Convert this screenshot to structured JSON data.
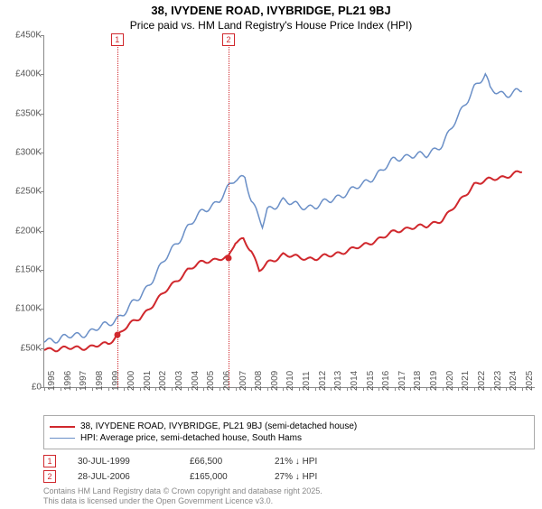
{
  "title": "38, IVYDENE ROAD, IVYBRIDGE, PL21 9BJ",
  "subtitle": "Price paid vs. HM Land Registry's House Price Index (HPI)",
  "chart": {
    "type": "line",
    "background_color": "#ffffff",
    "axis_color": "#888888",
    "text_color": "#555555",
    "ylim": [
      0,
      450000
    ],
    "ytick_step": 50000,
    "yticks": [
      "£0",
      "£50K",
      "£100K",
      "£150K",
      "£200K",
      "£250K",
      "£300K",
      "£350K",
      "£400K",
      "£450K"
    ],
    "xlim": [
      1995,
      2025.8
    ],
    "xticks": [
      "1995",
      "1996",
      "1997",
      "1998",
      "1999",
      "2000",
      "2001",
      "2002",
      "2003",
      "2004",
      "2005",
      "2006",
      "2007",
      "2008",
      "2009",
      "2010",
      "2011",
      "2012",
      "2013",
      "2014",
      "2015",
      "2016",
      "2017",
      "2018",
      "2019",
      "2020",
      "2021",
      "2022",
      "2023",
      "2024",
      "2025"
    ],
    "series": [
      {
        "name": "subject",
        "label": "38, IVYDENE ROAD, IVYBRIDGE, PL21 9BJ (semi-detached house)",
        "color": "#d0282d",
        "line_width": 2,
        "data": [
          [
            1995,
            49000
          ],
          [
            1996,
            49000
          ],
          [
            1997,
            50000
          ],
          [
            1998,
            52000
          ],
          [
            1999,
            55000
          ],
          [
            1999.58,
            66500
          ],
          [
            2000,
            75000
          ],
          [
            2001,
            88000
          ],
          [
            2002,
            110000
          ],
          [
            2003,
            130000
          ],
          [
            2004,
            150000
          ],
          [
            2005,
            160000
          ],
          [
            2006,
            165000
          ],
          [
            2006.57,
            165000
          ],
          [
            2007,
            185000
          ],
          [
            2007.5,
            190000
          ],
          [
            2008,
            175000
          ],
          [
            2008.5,
            148000
          ],
          [
            2009,
            158000
          ],
          [
            2010,
            170000
          ],
          [
            2011,
            165000
          ],
          [
            2012,
            165000
          ],
          [
            2013,
            168000
          ],
          [
            2014,
            175000
          ],
          [
            2015,
            180000
          ],
          [
            2016,
            190000
          ],
          [
            2017,
            198000
          ],
          [
            2018,
            205000
          ],
          [
            2019,
            205000
          ],
          [
            2020,
            215000
          ],
          [
            2021,
            235000
          ],
          [
            2022,
            260000
          ],
          [
            2023,
            265000
          ],
          [
            2024,
            270000
          ],
          [
            2025,
            275000
          ]
        ]
      },
      {
        "name": "hpi",
        "label": "HPI: Average price, semi-detached house, South Hams",
        "color": "#6a8fc7",
        "line_width": 1.5,
        "data": [
          [
            1995,
            60000
          ],
          [
            1996,
            62000
          ],
          [
            1997,
            66000
          ],
          [
            1998,
            72000
          ],
          [
            1999,
            80000
          ],
          [
            2000,
            95000
          ],
          [
            2001,
            115000
          ],
          [
            2002,
            145000
          ],
          [
            2003,
            175000
          ],
          [
            2004,
            205000
          ],
          [
            2005,
            225000
          ],
          [
            2006,
            240000
          ],
          [
            2007,
            265000
          ],
          [
            2007.6,
            270000
          ],
          [
            2008,
            240000
          ],
          [
            2008.7,
            205000
          ],
          [
            2009,
            225000
          ],
          [
            2010,
            240000
          ],
          [
            2011,
            230000
          ],
          [
            2012,
            232000
          ],
          [
            2013,
            238000
          ],
          [
            2014,
            250000
          ],
          [
            2015,
            258000
          ],
          [
            2016,
            275000
          ],
          [
            2017,
            290000
          ],
          [
            2018,
            298000
          ],
          [
            2019,
            295000
          ],
          [
            2020,
            312000
          ],
          [
            2021,
            345000
          ],
          [
            2022,
            385000
          ],
          [
            2022.7,
            398000
          ],
          [
            2023,
            380000
          ],
          [
            2024,
            375000
          ],
          [
            2025,
            378000
          ]
        ]
      }
    ],
    "markers": [
      {
        "num": "1",
        "year": 1999.58,
        "price": 66500
      },
      {
        "num": "2",
        "year": 2006.57,
        "price": 165000
      }
    ]
  },
  "legend": {
    "items": [
      {
        "color": "#d0282d",
        "width": 2,
        "label_key": "chart.series.0.label"
      },
      {
        "color": "#6a8fc7",
        "width": 1.5,
        "label_key": "chart.series.1.label"
      }
    ]
  },
  "sales": [
    {
      "num": "1",
      "date": "30-JUL-1999",
      "price": "£66,500",
      "delta": "21% ↓ HPI"
    },
    {
      "num": "2",
      "date": "28-JUL-2006",
      "price": "£165,000",
      "delta": "27% ↓ HPI"
    }
  ],
  "footer_line1": "Contains HM Land Registry data © Crown copyright and database right 2025.",
  "footer_line2": "This data is licensed under the Open Government Licence v3.0."
}
